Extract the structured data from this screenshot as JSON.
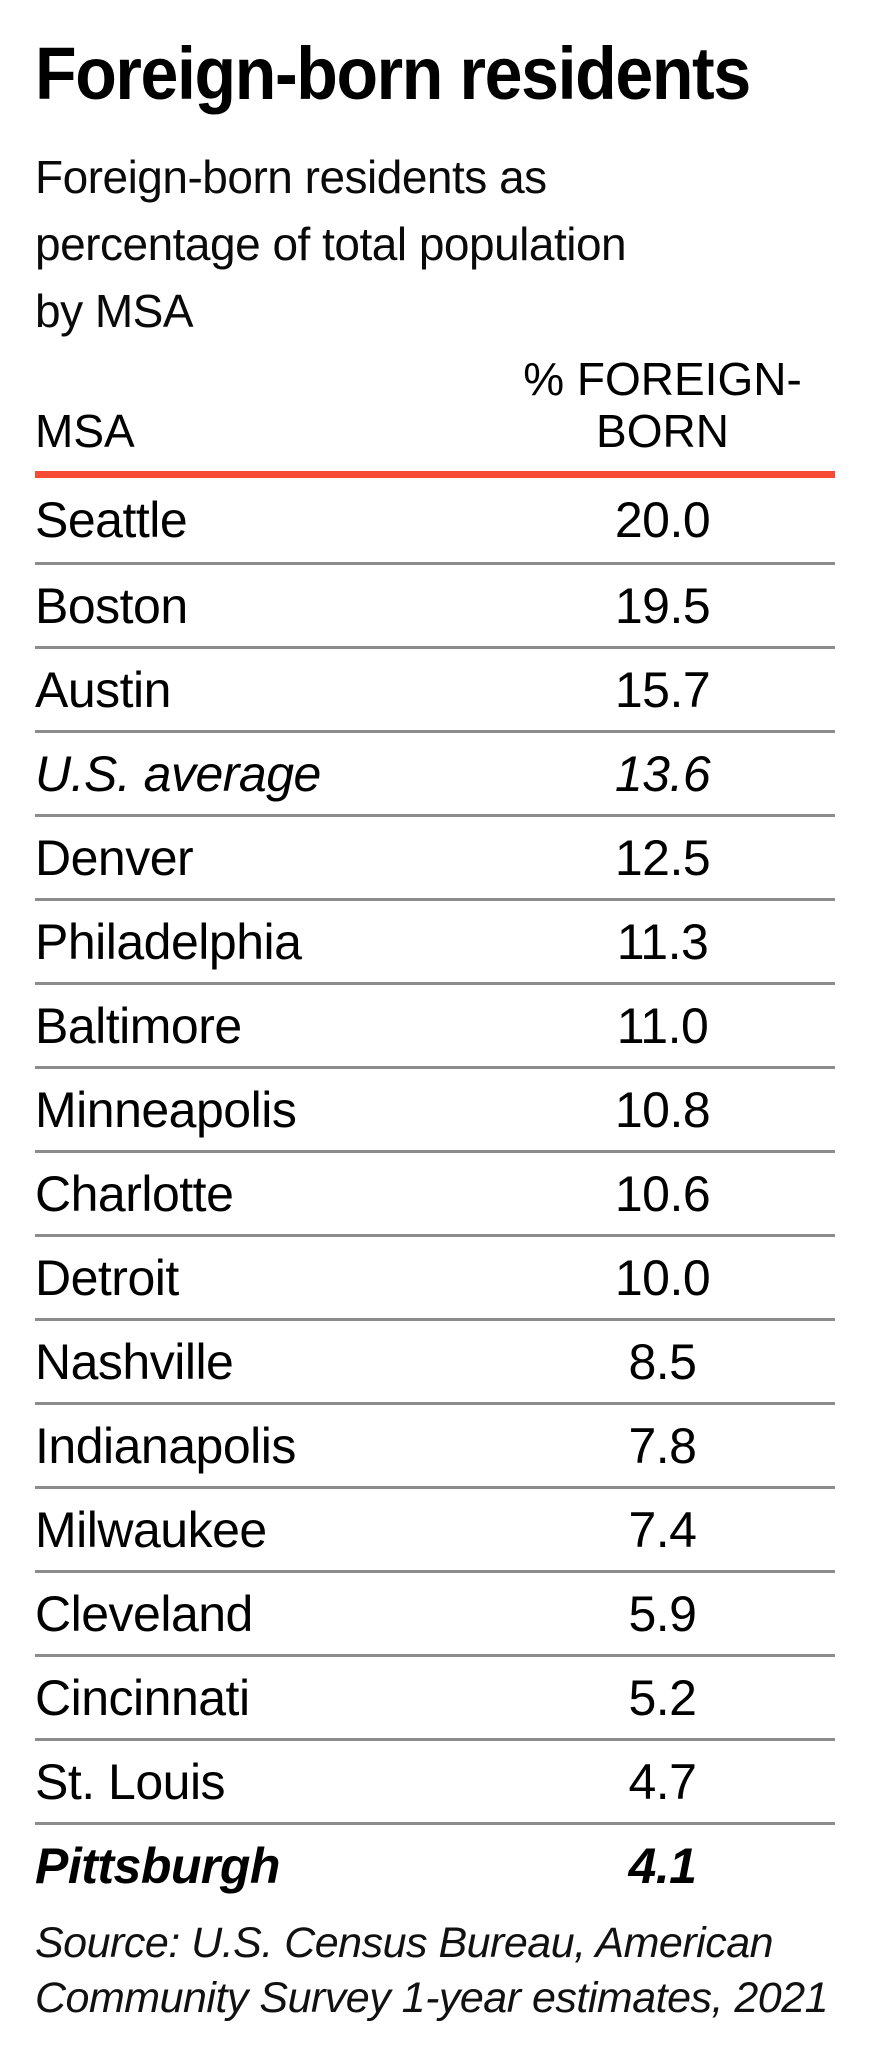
{
  "page": {
    "title": "Foreign-born residents",
    "subtitle_lines": [
      "Foreign-born residents as",
      "percentage of total population",
      "by MSA"
    ],
    "source_lines": [
      "Source: U.S. Census Bureau, American",
      "Community Survey 1-year estimates, 2021"
    ]
  },
  "table": {
    "msa_header": "MSA",
    "value_header_lines": [
      "% FOREIGN-",
      "BORN"
    ],
    "rows": [
      {
        "msa": "Seattle",
        "value": "20.0",
        "emphasis": "none"
      },
      {
        "msa": "Boston",
        "value": "19.5",
        "emphasis": "none"
      },
      {
        "msa": "Austin",
        "value": "15.7",
        "emphasis": "none"
      },
      {
        "msa": "U.S. average",
        "value": "13.6",
        "emphasis": "italic"
      },
      {
        "msa": "Denver",
        "value": "12.5",
        "emphasis": "none"
      },
      {
        "msa": "Philadelphia",
        "value": "11.3",
        "emphasis": "none"
      },
      {
        "msa": "Baltimore",
        "value": "11.0",
        "emphasis": "none"
      },
      {
        "msa": "Minneapolis",
        "value": "10.8",
        "emphasis": "none"
      },
      {
        "msa": "Charlotte",
        "value": "10.6",
        "emphasis": "none"
      },
      {
        "msa": "Detroit",
        "value": "10.0",
        "emphasis": "none"
      },
      {
        "msa": "Nashville",
        "value": "8.5",
        "emphasis": "none"
      },
      {
        "msa": "Indianapolis",
        "value": "7.8",
        "emphasis": "none"
      },
      {
        "msa": "Milwaukee",
        "value": "7.4",
        "emphasis": "none"
      },
      {
        "msa": "Cleveland",
        "value": "5.9",
        "emphasis": "none"
      },
      {
        "msa": "Cincinnati",
        "value": "5.2",
        "emphasis": "none"
      },
      {
        "msa": "St. Louis",
        "value": "4.7",
        "emphasis": "none"
      },
      {
        "msa": "Pittsburgh",
        "value": "4.1",
        "emphasis": "bold-italic"
      }
    ]
  },
  "colors": {
    "accent_rule": "#f84b33",
    "row_divider": "#8c8c8c",
    "text": "#000000"
  },
  "chart_data": {
    "type": "table",
    "title": "Foreign-born residents",
    "subtitle": "Foreign-born residents as percentage of total population by MSA",
    "columns": [
      "MSA",
      "% FOREIGN-BORN"
    ],
    "rows": [
      [
        "Seattle",
        20.0
      ],
      [
        "Boston",
        19.5
      ],
      [
        "Austin",
        15.7
      ],
      [
        "U.S. average",
        13.6
      ],
      [
        "Denver",
        12.5
      ],
      [
        "Philadelphia",
        11.3
      ],
      [
        "Baltimore",
        11.0
      ],
      [
        "Minneapolis",
        10.8
      ],
      [
        "Charlotte",
        10.6
      ],
      [
        "Detroit",
        10.0
      ],
      [
        "Nashville",
        8.5
      ],
      [
        "Indianapolis",
        7.8
      ],
      [
        "Milwaukee",
        7.4
      ],
      [
        "Cleveland",
        5.9
      ],
      [
        "Cincinnati",
        5.2
      ],
      [
        "St. Louis",
        4.7
      ],
      [
        "Pittsburgh",
        4.1
      ]
    ],
    "emphasis": {
      "italic_row": "U.S. average",
      "bold_italic_row": "Pittsburgh"
    },
    "units": "percent of total population",
    "source": "Source: U.S. Census Bureau, American Community Survey 1-year estimates, 2021"
  }
}
